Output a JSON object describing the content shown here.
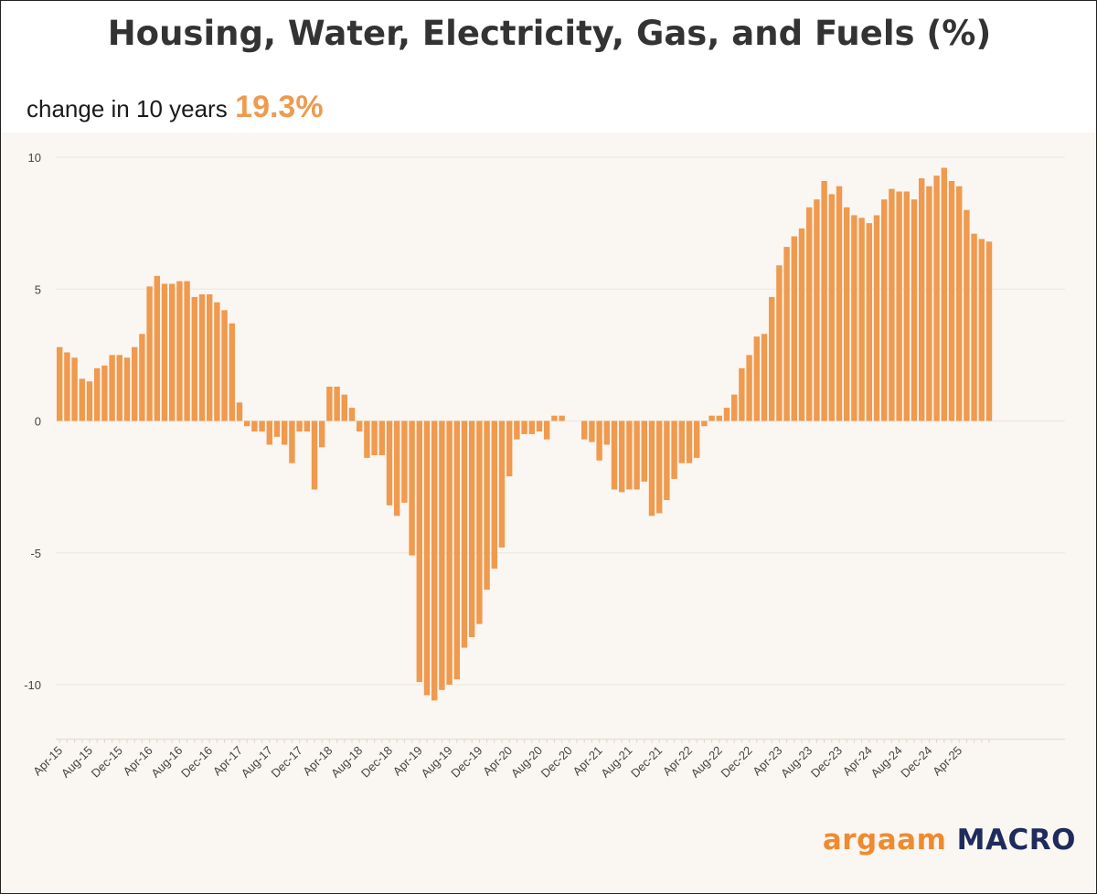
{
  "header": {
    "title": "Housing, Water, Electricity, Gas, and Fuels (%)"
  },
  "subtitle": {
    "label": "change in 10 years",
    "value": "19.3%"
  },
  "brand": {
    "part1": "argaam",
    "part2": "MACRO"
  },
  "colors": {
    "bar": "#ef9a4e",
    "accent": "#ef9a4e",
    "grid": "#ebe5dd",
    "brand_orange": "#ef8a2f",
    "brand_navy": "#1f2b5c"
  },
  "chart_data": {
    "type": "bar",
    "title": "Housing, Water, Electricity, Gas, and Fuels (%)",
    "xlabel": "",
    "ylabel": "",
    "ylim": [
      -12,
      10
    ],
    "yticks": [
      10,
      5,
      0,
      -5,
      -10
    ],
    "grid": true,
    "start_month": "Apr-15",
    "xtick_labels": [
      "Apr-15",
      "Aug-15",
      "Dec-15",
      "Apr-16",
      "Aug-16",
      "Dec-16",
      "Apr-17",
      "Aug-17",
      "Dec-17",
      "Apr-18",
      "Aug-18",
      "Dec-18",
      "Apr-19",
      "Aug-19",
      "Dec-19",
      "Apr-20",
      "Aug-20",
      "Dec-20",
      "Apr-21",
      "Aug-21",
      "Dec-21",
      "Apr-22",
      "Aug-22",
      "Dec-22",
      "Apr-23",
      "Aug-23",
      "Dec-23",
      "Apr-24",
      "Aug-24",
      "Dec-24",
      "Apr-25"
    ],
    "values": [
      2.8,
      2.6,
      2.4,
      1.6,
      1.5,
      2.0,
      2.1,
      2.5,
      2.5,
      2.4,
      2.8,
      3.3,
      5.1,
      5.5,
      5.2,
      5.2,
      5.3,
      5.3,
      4.7,
      4.8,
      4.8,
      4.5,
      4.2,
      3.7,
      0.7,
      -0.2,
      -0.4,
      -0.4,
      -0.9,
      -0.6,
      -0.9,
      -1.6,
      -0.4,
      -0.4,
      -2.6,
      -1.0,
      1.3,
      1.3,
      1.0,
      0.5,
      -0.4,
      -1.4,
      -1.3,
      -1.3,
      -3.2,
      -3.6,
      -3.1,
      -5.1,
      -9.9,
      -10.4,
      -10.6,
      -10.2,
      -10.0,
      -9.8,
      -8.6,
      -8.2,
      -7.7,
      -6.4,
      -5.6,
      -4.8,
      -2.1,
      -0.7,
      -0.5,
      -0.5,
      -0.4,
      -0.7,
      0.2,
      0.2,
      0.0,
      0.0,
      -0.7,
      -0.8,
      -1.5,
      -0.9,
      -2.6,
      -2.7,
      -2.6,
      -2.6,
      -2.3,
      -3.6,
      -3.5,
      -3.0,
      -2.2,
      -1.6,
      -1.6,
      -1.4,
      -0.2,
      0.2,
      0.2,
      0.5,
      1.0,
      2.0,
      2.5,
      3.2,
      3.3,
      4.7,
      5.9,
      6.6,
      7.0,
      7.3,
      8.1,
      8.4,
      9.1,
      8.6,
      8.9,
      8.1,
      7.8,
      7.7,
      7.5,
      7.8,
      8.4,
      8.8,
      8.7,
      8.7,
      8.4,
      9.2,
      8.9,
      9.3,
      9.6,
      9.1,
      8.9,
      8.0,
      7.1,
      6.9,
      6.8
    ]
  }
}
